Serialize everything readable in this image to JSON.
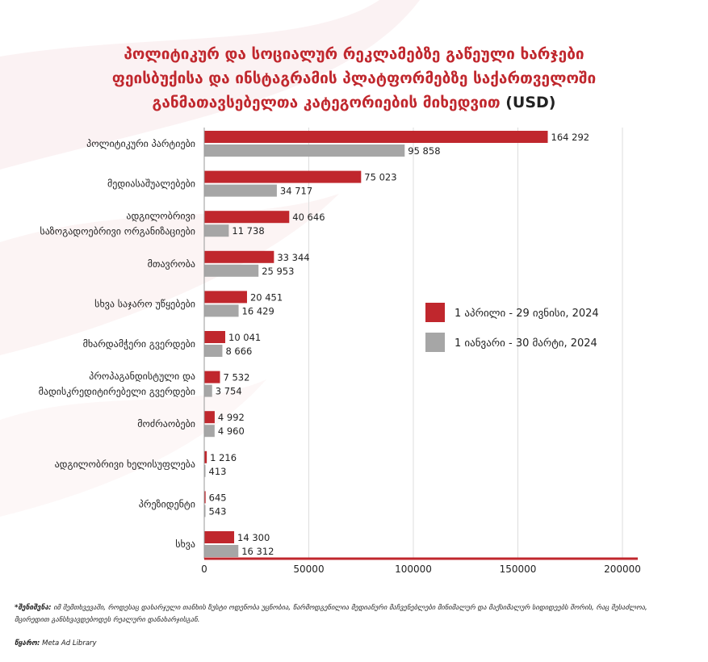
{
  "title": {
    "line1": "პოლიტიკურ და სოციალურ რეკლამებზე გაწეული ხარჯები",
    "line2": "ფეისბუქისა და ინსტაგრამის პლატფორმებზე საქართველოში",
    "line3": "განმათავსებელთა კატეგორიების მიხედვით",
    "unit": "(USD)"
  },
  "colors": {
    "series1": "#c0272d",
    "series2": "#a6a6a6",
    "axis": "#c0272d"
  },
  "chart_data": {
    "type": "bar",
    "orientation": "horizontal",
    "categories": [
      [
        "პოლიტიკური პარტიები"
      ],
      [
        "მედიასაშუალებები"
      ],
      [
        "ადგილობრივი",
        "საზოგადოებრივი ორგანიზაციები"
      ],
      [
        "მთავრობა"
      ],
      [
        "სხვა საჯარო უწყებები"
      ],
      [
        "მხარდამჭერი გვერდები"
      ],
      [
        "პროპაგანდისტული და",
        "მადისკრედიტირებელი გვერდები"
      ],
      [
        "მოძრაობები"
      ],
      [
        "ადგილობრივი ხელისუფლება"
      ],
      [
        "პრეზიდენტი"
      ],
      [
        "სხვა"
      ]
    ],
    "series": [
      {
        "name": "1 აპრილი - 29 ივნისი, 2024",
        "values": [
          164292,
          75023,
          40646,
          33344,
          20451,
          10041,
          7532,
          4992,
          1216,
          645,
          14300
        ],
        "labels": [
          "164 292",
          "75 023",
          "40 646",
          "33 344",
          "20 451",
          "10 041",
          "7 532",
          "4 992",
          "1 216",
          "645",
          "14 300"
        ]
      },
      {
        "name": "1 იანვარი - 30 მარტი, 2024",
        "values": [
          95858,
          34717,
          11738,
          25953,
          16429,
          8666,
          3754,
          4960,
          413,
          543,
          16312
        ],
        "labels": [
          "95 858",
          "34 717",
          "11 738",
          "25 953",
          "16 429",
          "8 666",
          "3 754",
          "4 960",
          "413",
          "543",
          "16 312"
        ]
      }
    ],
    "xlim": [
      0,
      200000
    ],
    "xticks": [
      "0",
      "50000",
      "100000",
      "150000",
      "200000"
    ],
    "grid": true,
    "legend": "right"
  },
  "footnote": {
    "label": "*შენიშვნა:",
    "text": "იმ შემთხვევაში, როდესაც დახარჯული თანხის ზუსტი ოდენობა უცნობია, წარმოდგენილია მედიანური მაჩვენებლები მინიმალურ და მაქსიმალურ სიდიდეებს შორის, რაც შესაძლოა, მცირედით განსხვავდებოდეს რეალური დანახარჯისგან."
  },
  "source": {
    "label": "წყარო:",
    "text": "Meta Ad Library"
  }
}
